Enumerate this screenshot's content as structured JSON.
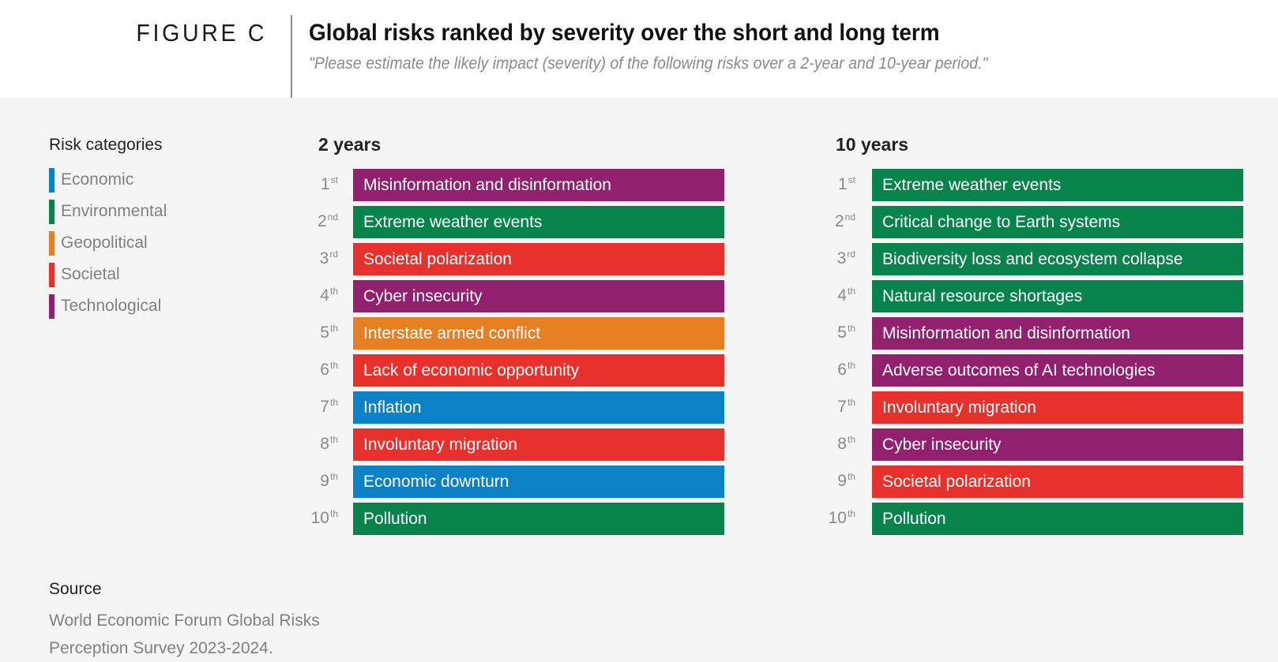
{
  "header": {
    "figure_label": "FIGURE C",
    "title": "Global risks ranked by severity over the short and long term",
    "subtitle": "\"Please estimate the likely impact (severity) of the following risks over a 2-year and 10-year period.\""
  },
  "legend": {
    "title": "Risk categories",
    "items": [
      {
        "label": "Economic",
        "color": "#0c82c6"
      },
      {
        "label": "Environmental",
        "color": "#08834c"
      },
      {
        "label": "Geopolitical",
        "color": "#e67e22"
      },
      {
        "label": "Societal",
        "color": "#e6312c"
      },
      {
        "label": "Technological",
        "color": "#91206e"
      }
    ]
  },
  "source": {
    "title": "Source",
    "text": "World Economic Forum Global Risks Perception Survey 2023-2024."
  },
  "chart_data": {
    "type": "table",
    "title": "Global risks ranked by severity over the short and long term",
    "categories_colors": {
      "Economic": "#0c82c6",
      "Environmental": "#08834c",
      "Geopolitical": "#e67e22",
      "Societal": "#e6312c",
      "Technological": "#91206e"
    },
    "panels": [
      {
        "title": "2 years",
        "rows": [
          {
            "rank": "1",
            "suffix": "st",
            "risk": "Misinformation and disinformation",
            "category": "Technological"
          },
          {
            "rank": "2",
            "suffix": "nd",
            "risk": "Extreme weather events",
            "category": "Environmental"
          },
          {
            "rank": "3",
            "suffix": "rd",
            "risk": "Societal polarization",
            "category": "Societal"
          },
          {
            "rank": "4",
            "suffix": "th",
            "risk": "Cyber insecurity",
            "category": "Technological"
          },
          {
            "rank": "5",
            "suffix": "th",
            "risk": "Interstate armed conflict",
            "category": "Geopolitical"
          },
          {
            "rank": "6",
            "suffix": "th",
            "risk": "Lack of economic opportunity",
            "category": "Societal"
          },
          {
            "rank": "7",
            "suffix": "th",
            "risk": "Inflation",
            "category": "Economic"
          },
          {
            "rank": "8",
            "suffix": "th",
            "risk": "Involuntary migration",
            "category": "Societal"
          },
          {
            "rank": "9",
            "suffix": "th",
            "risk": "Economic downturn",
            "category": "Economic"
          },
          {
            "rank": "10",
            "suffix": "th",
            "risk": "Pollution",
            "category": "Environmental"
          }
        ]
      },
      {
        "title": "10 years",
        "rows": [
          {
            "rank": "1",
            "suffix": "st",
            "risk": "Extreme weather events",
            "category": "Environmental"
          },
          {
            "rank": "2",
            "suffix": "nd",
            "risk": "Critical change to Earth systems",
            "category": "Environmental"
          },
          {
            "rank": "3",
            "suffix": "rd",
            "risk": "Biodiversity loss and ecosystem collapse",
            "category": "Environmental"
          },
          {
            "rank": "4",
            "suffix": "th",
            "risk": "Natural resource shortages",
            "category": "Environmental"
          },
          {
            "rank": "5",
            "suffix": "th",
            "risk": "Misinformation and disinformation",
            "category": "Technological"
          },
          {
            "rank": "6",
            "suffix": "th",
            "risk": "Adverse outcomes of AI technologies",
            "category": "Technological"
          },
          {
            "rank": "7",
            "suffix": "th",
            "risk": "Involuntary migration",
            "category": "Societal"
          },
          {
            "rank": "8",
            "suffix": "th",
            "risk": "Cyber insecurity",
            "category": "Technological"
          },
          {
            "rank": "9",
            "suffix": "th",
            "risk": "Societal polarization",
            "category": "Societal"
          },
          {
            "rank": "10",
            "suffix": "th",
            "risk": "Pollution",
            "category": "Environmental"
          }
        ]
      }
    ]
  }
}
